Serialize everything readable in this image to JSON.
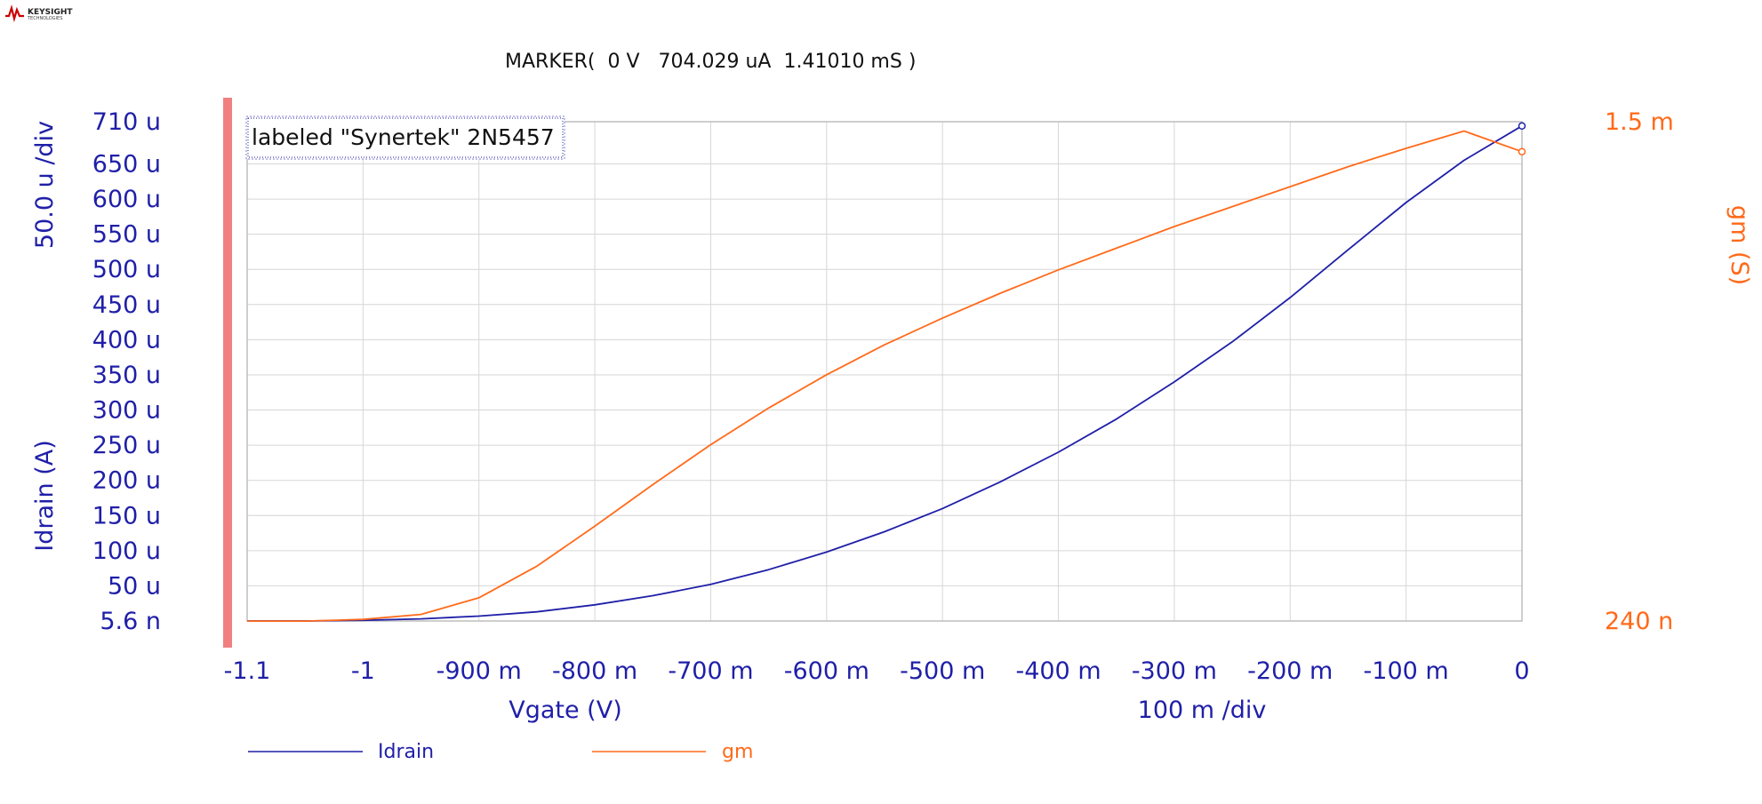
{
  "brand": {
    "name": "KEYSIGHT",
    "sub": "TECHNOLOGIES",
    "color": "#cc0000"
  },
  "marker": {
    "text": "MARKER(  0 V   704.029 uA  1.41010 mS )"
  },
  "annotation": {
    "text": "labeled \"Synertek\" 2N5457"
  },
  "colors": {
    "idrain": "#1f1fa8",
    "gm": "#ff6a1a",
    "grid": "#d6d6d6",
    "frame": "#bdbdbd",
    "side_bar": "#f08080"
  },
  "chart_data": {
    "type": "line",
    "xlabel": "Vgate (V)",
    "x_div_label": "100 m /div",
    "xlim": [
      -1.1,
      0
    ],
    "x_ticks": [
      -1.1,
      -1.0,
      -0.9,
      -0.8,
      -0.7,
      -0.6,
      -0.5,
      -0.4,
      -0.3,
      -0.2,
      -0.1,
      0
    ],
    "x_tick_labels": [
      "-1.1",
      "-1",
      "-900 m",
      "-800 m",
      "-700 m",
      "-600 m",
      "-500 m",
      "-400 m",
      "-300 m",
      "-200 m",
      "-100 m",
      "0"
    ],
    "y_left": {
      "label": "Idrain (A)",
      "div_label": "50.0 u /div",
      "lim": [
        5.6e-09,
        0.00071
      ],
      "ticks": [
        5.6e-09,
        5e-05,
        0.0001,
        0.00015,
        0.0002,
        0.00025,
        0.0003,
        0.00035,
        0.0004,
        0.00045,
        0.0005,
        0.00055,
        0.0006,
        0.00065,
        0.00071
      ],
      "tick_labels": [
        "5.6 n",
        "50 u",
        "100 u",
        "150 u",
        "200 u",
        "250 u",
        "300 u",
        "350 u",
        "400 u",
        "450 u",
        "500 u",
        "550 u",
        "600 u",
        "650 u",
        "710 u"
      ]
    },
    "y_right": {
      "label": "gm (S)",
      "lim": [
        2.4e-07,
        0.0015
      ],
      "tick_labels": [
        "240 n",
        "1.5 m"
      ]
    },
    "series": [
      {
        "name": "Idrain",
        "axis": "left",
        "x": [
          -1.1,
          -1.05,
          -1.0,
          -0.95,
          -0.9,
          -0.85,
          -0.8,
          -0.75,
          -0.7,
          -0.65,
          -0.6,
          -0.55,
          -0.5,
          -0.45,
          -0.4,
          -0.35,
          -0.3,
          -0.25,
          -0.2,
          -0.15,
          -0.1,
          -0.05,
          0
        ],
        "y": [
          0,
          0,
          1e-06,
          3e-06,
          7e-06,
          1.3e-05,
          2.3e-05,
          3.6e-05,
          5.2e-05,
          7.3e-05,
          9.8e-05,
          0.000127,
          0.00016,
          0.000198,
          0.00024,
          0.000287,
          0.00034,
          0.000397,
          0.00046,
          0.000528,
          0.000595,
          0.000655,
          0.000704
        ]
      },
      {
        "name": "gm",
        "axis": "right",
        "x": [
          -1.1,
          -1.05,
          -1.0,
          -0.95,
          -0.9,
          -0.85,
          -0.8,
          -0.75,
          -0.7,
          -0.65,
          -0.6,
          -0.55,
          -0.5,
          -0.45,
          -0.4,
          -0.35,
          -0.3,
          -0.25,
          -0.2,
          -0.15,
          -0.1,
          -0.05,
          0
        ],
        "y": [
          0,
          0,
          5e-06,
          2e-05,
          7e-05,
          0.000165,
          0.000285,
          0.00041,
          0.00053,
          0.00064,
          0.00074,
          0.00083,
          0.00091,
          0.000985,
          0.001055,
          0.00112,
          0.001185,
          0.001245,
          0.001305,
          0.001365,
          0.00142,
          0.001472,
          0.00141
        ]
      }
    ],
    "legend": [
      {
        "name": "Idrain",
        "color": "#1f1fa8"
      },
      {
        "name": "gm",
        "color": "#ff6a1a"
      }
    ],
    "legend_position": "bottom-left",
    "grid": true
  }
}
